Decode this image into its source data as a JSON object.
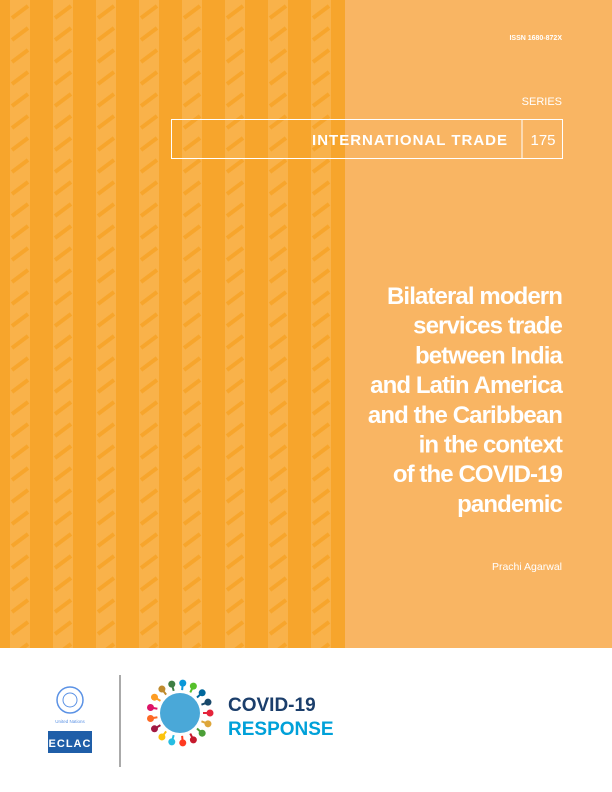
{
  "cover": {
    "issn": "ISSN 1680-872X",
    "series_label": "SERIES",
    "series_name": "INTERNATIONAL TRADE",
    "series_number": "175",
    "title_lines": [
      "Bilateral modern",
      "services trade",
      "between India",
      "and Latin America",
      "and the Caribbean",
      "in the context",
      "of the COVID-19",
      "pandemic"
    ],
    "author": "Prachi Agarwal"
  },
  "footer": {
    "un_name": "United Nations",
    "eclac": "ECLAC",
    "covid_line1": "COVID-19",
    "covid_line2": "RESPONSE"
  }
}
